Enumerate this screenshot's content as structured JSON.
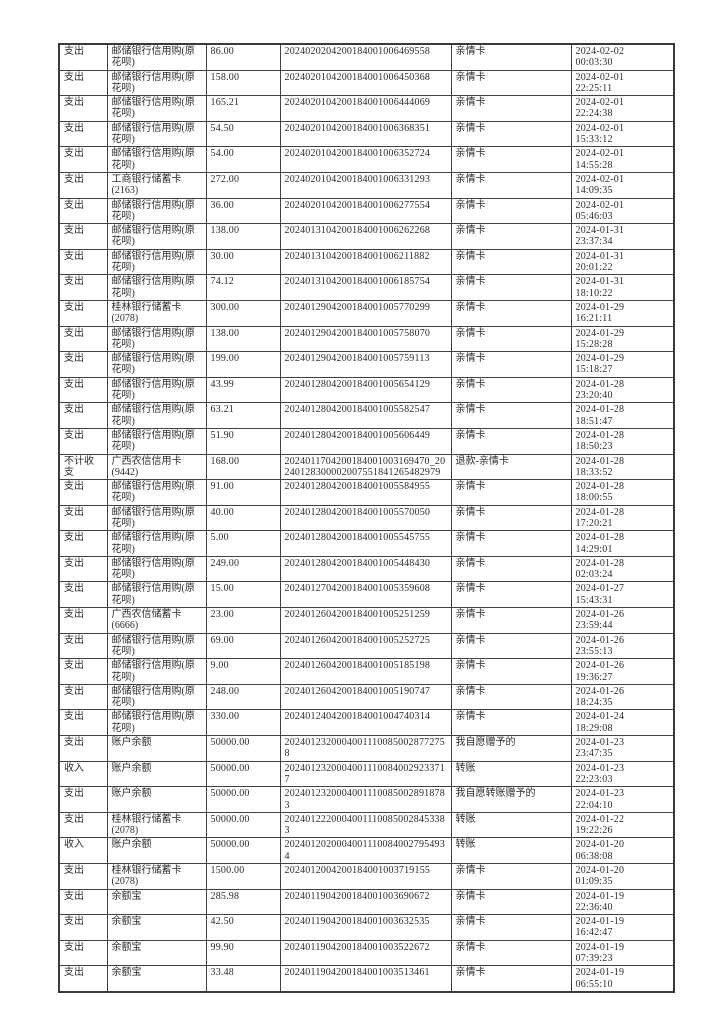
{
  "page": {
    "background_color": "#ffffff",
    "text_color": "#2c2c2c",
    "border_color": "#424242"
  },
  "table": {
    "rows": [
      {
        "direction": "支出",
        "account": "邮储银行信用购(原花呗)",
        "amount": "86.00",
        "transaction_id": "2024020204200184001006469558",
        "remark": "亲情卡",
        "date": "2024-02-02",
        "time": "00:03:30"
      },
      {
        "direction": "支出",
        "account": "邮储银行信用购(原花呗)",
        "amount": "158.00",
        "transaction_id": "2024020104200184001006450368",
        "remark": "亲情卡",
        "date": "2024-02-01",
        "time": "22:25:11"
      },
      {
        "direction": "支出",
        "account": "邮储银行信用购(原花呗)",
        "amount": "165.21",
        "transaction_id": "2024020104200184001006444069",
        "remark": "亲情卡",
        "date": "2024-02-01",
        "time": "22:24:38"
      },
      {
        "direction": "支出",
        "account": "邮储银行信用购(原花呗)",
        "amount": "54.50",
        "transaction_id": "2024020104200184001006368351",
        "remark": "亲情卡",
        "date": "2024-02-01",
        "time": "15:33:12"
      },
      {
        "direction": "支出",
        "account": "邮储银行信用购(原花呗)",
        "amount": "54.00",
        "transaction_id": "2024020104200184001006352724",
        "remark": "亲情卡",
        "date": "2024-02-01",
        "time": "14:55:28"
      },
      {
        "direction": "支出",
        "account": "工商银行储蓄卡(2163)",
        "amount": "272.00",
        "transaction_id": "2024020104200184001006331293",
        "remark": "亲情卡",
        "date": "2024-02-01",
        "time": "14:09:35"
      },
      {
        "direction": "支出",
        "account": "邮储银行信用购(原花呗)",
        "amount": "36.00",
        "transaction_id": "2024020104200184001006277554",
        "remark": "亲情卡",
        "date": "2024-02-01",
        "time": "05:46:03"
      },
      {
        "direction": "支出",
        "account": "邮储银行信用购(原花呗)",
        "amount": "138.00",
        "transaction_id": "2024013104200184001006262268",
        "remark": "亲情卡",
        "date": "2024-01-31",
        "time": "23:37:34"
      },
      {
        "direction": "支出",
        "account": "邮储银行信用购(原花呗)",
        "amount": "30.00",
        "transaction_id": "2024013104200184001006211882",
        "remark": "亲情卡",
        "date": "2024-01-31",
        "time": "20:01:22"
      },
      {
        "direction": "支出",
        "account": "邮储银行信用购(原花呗)",
        "amount": "74.12",
        "transaction_id": "2024013104200184001006185754",
        "remark": "亲情卡",
        "date": "2024-01-31",
        "time": "18:10:22"
      },
      {
        "direction": "支出",
        "account": "桂林银行储蓄卡(2078)",
        "amount": "300.00",
        "transaction_id": "2024012904200184001005770299",
        "remark": "亲情卡",
        "date": "2024-01-29",
        "time": "16:21:11"
      },
      {
        "direction": "支出",
        "account": "邮储银行信用购(原花呗)",
        "amount": "138.00",
        "transaction_id": "2024012904200184001005758070",
        "remark": "亲情卡",
        "date": "2024-01-29",
        "time": "15:28:28"
      },
      {
        "direction": "支出",
        "account": "邮储银行信用购(原花呗)",
        "amount": "199.00",
        "transaction_id": "2024012904200184001005759113",
        "remark": "亲情卡",
        "date": "2024-01-29",
        "time": "15:18:27"
      },
      {
        "direction": "支出",
        "account": "邮储银行信用购(原花呗)",
        "amount": "43.99",
        "transaction_id": "2024012804200184001005654129",
        "remark": "亲情卡",
        "date": "2024-01-28",
        "time": "23:20:40"
      },
      {
        "direction": "支出",
        "account": "邮储银行信用购(原花呗)",
        "amount": "63.21",
        "transaction_id": "2024012804200184001005582547",
        "remark": "亲情卡",
        "date": "2024-01-28",
        "time": "18:51:47"
      },
      {
        "direction": "支出",
        "account": "邮储银行信用购(原花呗)",
        "amount": "51.90",
        "transaction_id": "2024012804200184001005606449",
        "remark": "亲情卡",
        "date": "2024-01-28",
        "time": "18:50:23"
      },
      {
        "direction": "不计收支",
        "account": "广西农信信用卡(9442)",
        "amount": "168.00",
        "transaction_id": "2024011704200184001003169470_20240128300002007551841265482979",
        "remark": "退款-亲情卡",
        "date": "2024-01-28",
        "time": "18:33:52"
      },
      {
        "direction": "支出",
        "account": "邮储银行信用购(原花呗)",
        "amount": "91.00",
        "transaction_id": "2024012804200184001005584955",
        "remark": "亲情卡",
        "date": "2024-01-28",
        "time": "18:00:55"
      },
      {
        "direction": "支出",
        "account": "邮储银行信用购(原花呗)",
        "amount": "40.00",
        "transaction_id": "2024012804200184001005570050",
        "remark": "亲情卡",
        "date": "2024-01-28",
        "time": "17:20:21"
      },
      {
        "direction": "支出",
        "account": "邮储银行信用购(原花呗)",
        "amount": "5.00",
        "transaction_id": "2024012804200184001005545755",
        "remark": "亲情卡",
        "date": "2024-01-28",
        "time": "14:29:01"
      },
      {
        "direction": "支出",
        "account": "邮储银行信用购(原花呗)",
        "amount": "249.00",
        "transaction_id": "2024012804200184001005448430",
        "remark": "亲情卡",
        "date": "2024-01-28",
        "time": "02:03:24"
      },
      {
        "direction": "支出",
        "account": "邮储银行信用购(原花呗)",
        "amount": "15.00",
        "transaction_id": "2024012704200184001005359608",
        "remark": "亲情卡",
        "date": "2024-01-27",
        "time": "15:43:31"
      },
      {
        "direction": "支出",
        "account": "广西农信储蓄卡(6666)",
        "amount": "23.00",
        "transaction_id": "2024012604200184001005251259",
        "remark": "亲情卡",
        "date": "2024-01-26",
        "time": "23:59:44"
      },
      {
        "direction": "支出",
        "account": "邮储银行信用购(原花呗)",
        "amount": "69.00",
        "transaction_id": "2024012604200184001005252725",
        "remark": "亲情卡",
        "date": "2024-01-26",
        "time": "23:55:13"
      },
      {
        "direction": "支出",
        "account": "邮储银行信用购(原花呗)",
        "amount": "9.00",
        "transaction_id": "2024012604200184001005185198",
        "remark": "亲情卡",
        "date": "2024-01-26",
        "time": "19:36:27"
      },
      {
        "direction": "支出",
        "account": "邮储银行信用购(原花呗)",
        "amount": "248.00",
        "transaction_id": "2024012604200184001005190747",
        "remark": "亲情卡",
        "date": "2024-01-26",
        "time": "18:24:35"
      },
      {
        "direction": "支出",
        "account": "邮储银行信用购(原花呗)",
        "amount": "330.00",
        "transaction_id": "2024012404200184001004740314",
        "remark": "亲情卡",
        "date": "2024-01-24",
        "time": "18:29:08"
      },
      {
        "direction": "支出",
        "account": "账户余额",
        "amount": "50000.00",
        "transaction_id": "20240123200040011100850028772758",
        "remark": "我自愿赠予的",
        "date": "2024-01-23",
        "time": "23:47:35"
      },
      {
        "direction": "收入",
        "account": "账户余额",
        "amount": "50000.00",
        "transaction_id": "20240123200040011100840029233717",
        "remark": "转账",
        "date": "2024-01-23",
        "time": "22:23:03"
      },
      {
        "direction": "支出",
        "account": "账户余额",
        "amount": "50000.00",
        "transaction_id": "20240123200040011100850028918783",
        "remark": "我自愿转账赠予的",
        "date": "2024-01-23",
        "time": "22:04:10"
      },
      {
        "direction": "支出",
        "account": "桂林银行储蓄卡(2078)",
        "amount": "50000.00",
        "transaction_id": "20240122200040011100850028453383",
        "remark": "转账",
        "date": "2024-01-22",
        "time": "19:22:26"
      },
      {
        "direction": "收入",
        "account": "账户余额",
        "amount": "50000.00",
        "transaction_id": "20240120200040011100840027954934",
        "remark": "转账",
        "date": "2024-01-20",
        "time": "06:38:08"
      },
      {
        "direction": "支出",
        "account": "桂林银行储蓄卡(2078)",
        "amount": "1500.00",
        "transaction_id": "2024012004200184001003719155",
        "remark": "亲情卡",
        "date": "2024-01-20",
        "time": "01:09:35"
      },
      {
        "direction": "支出",
        "account": "余额宝",
        "amount": "285.98",
        "transaction_id": "2024011904200184001003690672",
        "remark": "亲情卡",
        "date": "2024-01-19",
        "time": "22:36:40"
      },
      {
        "direction": "支出",
        "account": "余额宝",
        "amount": "42.50",
        "transaction_id": "2024011904200184001003632535",
        "remark": "亲情卡",
        "date": "2024-01-19",
        "time": "16:42:47"
      },
      {
        "direction": "支出",
        "account": "余额宝",
        "amount": "99.90",
        "transaction_id": "2024011904200184001003522672",
        "remark": "亲情卡",
        "date": "2024-01-19",
        "time": "07:39:23"
      },
      {
        "direction": "支出",
        "account": "余额宝",
        "amount": "33.48",
        "transaction_id": "2024011904200184001003513461",
        "remark": "亲情卡",
        "date": "2024-01-19",
        "time": "06:55:10"
      }
    ]
  }
}
